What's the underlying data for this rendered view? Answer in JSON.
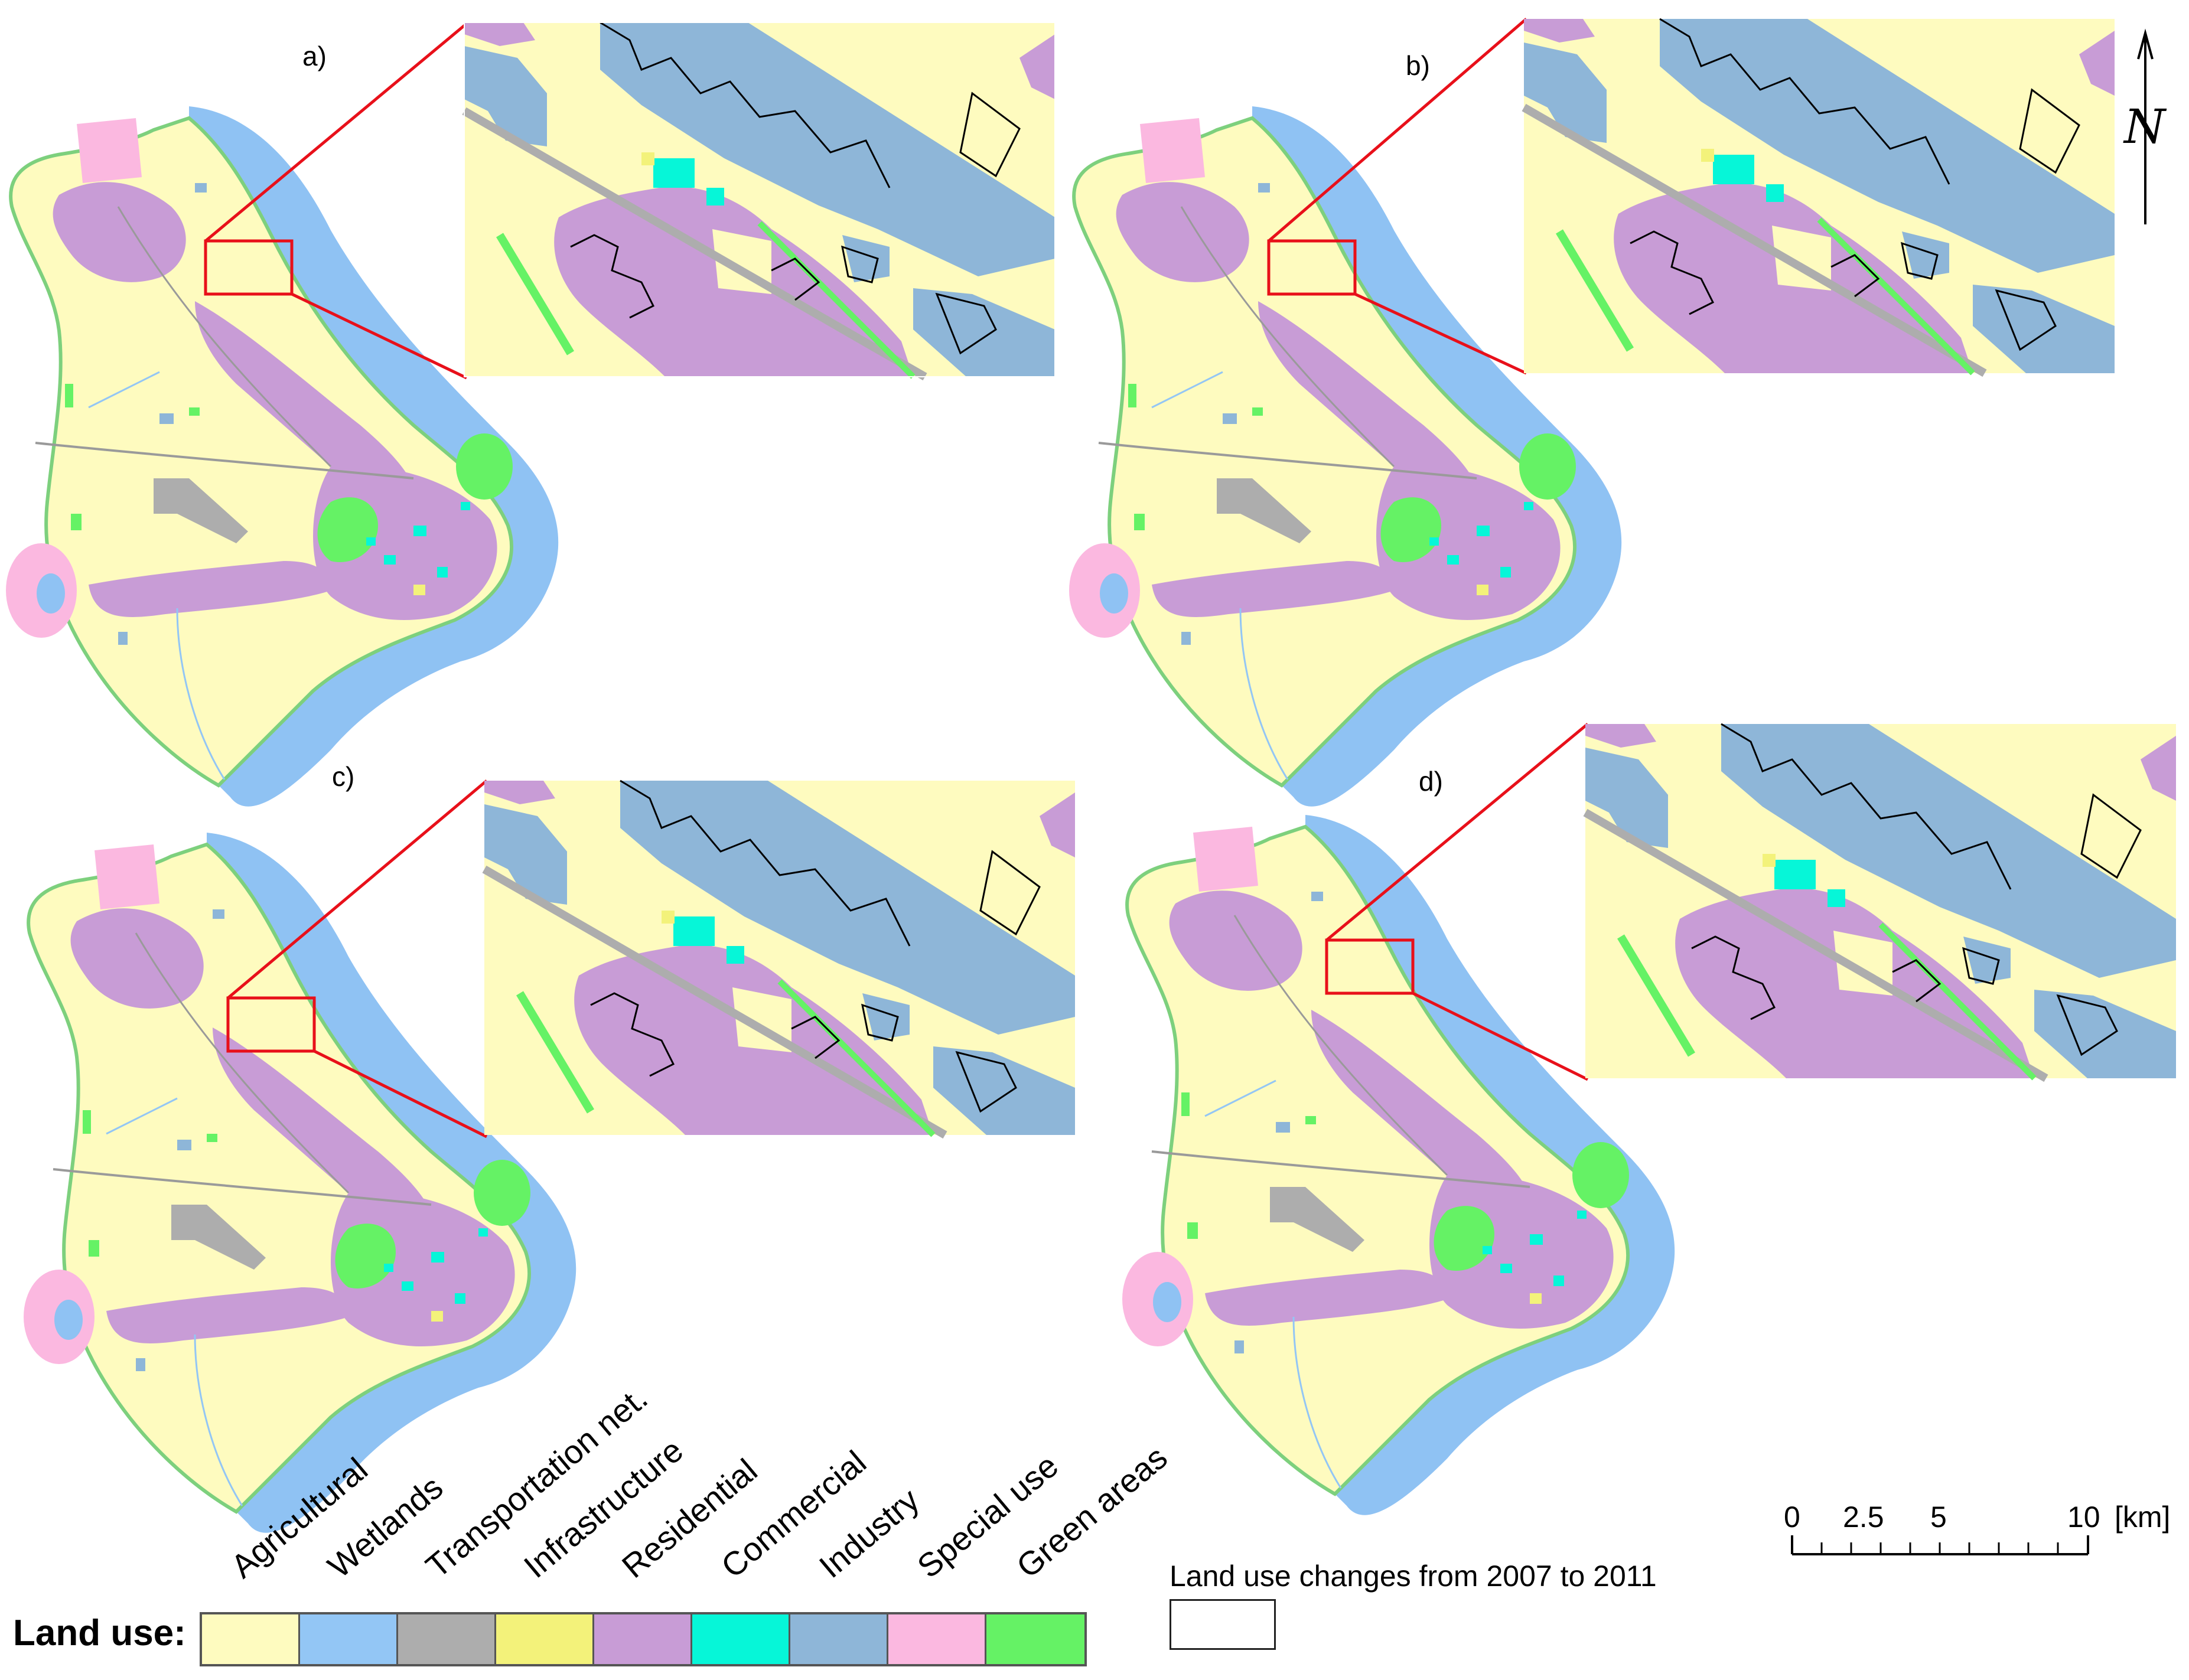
{
  "panels": [
    {
      "label": "a)"
    },
    {
      "label": "b)"
    },
    {
      "label": "c)"
    },
    {
      "label": "d)"
    }
  ],
  "north_arrow": {
    "label": "N"
  },
  "legend": {
    "title": "Land use:",
    "classes": [
      {
        "name": "Agricultural",
        "color": "#fefbbf"
      },
      {
        "name": "Wetlands",
        "color": "#93c6f5"
      },
      {
        "name": "Transportation net.",
        "color": "#adadad"
      },
      {
        "name": "Infrastructure",
        "color": "#f3f27a"
      },
      {
        "name": "Residential",
        "color": "#c89cd6"
      },
      {
        "name": "Commercial",
        "color": "#06f6d8"
      },
      {
        "name": "Industry",
        "color": "#8eb6d8"
      },
      {
        "name": "Special use",
        "color": "#fbb8e0"
      },
      {
        "name": "Green areas",
        "color": "#65f265"
      }
    ],
    "change_label": "Land use changes from 2007 to 2011"
  },
  "scale_bar": {
    "ticks": [
      "0",
      "2.5",
      "5",
      "10"
    ],
    "unit": "[km]"
  },
  "colors": {
    "zoom_frame": "#e8101a",
    "river": "#8fc2f3",
    "outline": "#000000"
  }
}
